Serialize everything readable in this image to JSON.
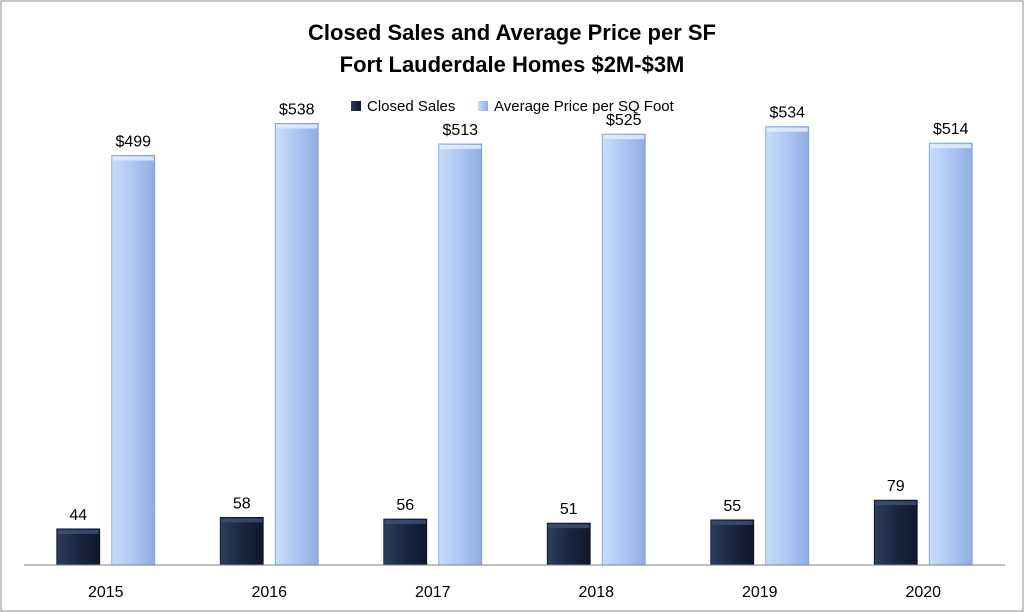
{
  "chart_data": {
    "type": "bar",
    "title": "Closed Sales and Average Price per SF",
    "subtitle": "Fort Lauderdale Homes $2M-$3M",
    "categories": [
      "2015",
      "2016",
      "2017",
      "2018",
      "2019",
      "2020"
    ],
    "series": [
      {
        "name": "Closed Sales",
        "values": [
          44,
          58,
          56,
          51,
          55,
          79
        ],
        "labels": [
          "44",
          "58",
          "56",
          "51",
          "55",
          "79"
        ],
        "color": "#1c2a44"
      },
      {
        "name": "Average Price per SQ Foot",
        "values": [
          499,
          538,
          513,
          525,
          534,
          514
        ],
        "labels": [
          "$499",
          "$538",
          "$513",
          "$525",
          "$534",
          "$514"
        ],
        "color": "#a9c4f0"
      }
    ],
    "xlabel": "",
    "ylabel": "",
    "ylim": [
      0,
      530
    ],
    "grid": false,
    "legend_position": "top"
  }
}
